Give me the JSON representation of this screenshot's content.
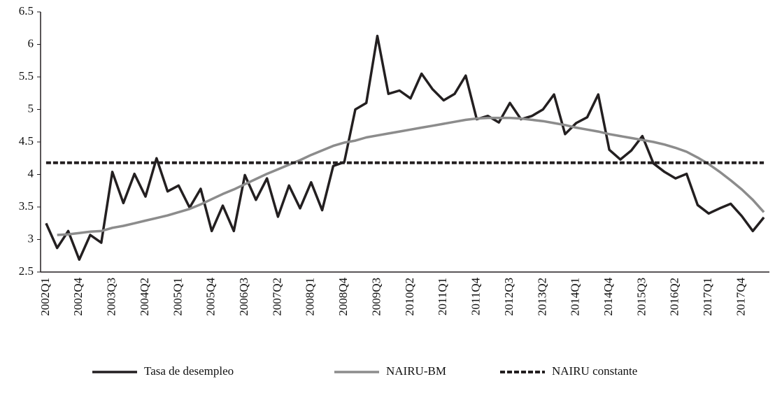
{
  "chart_data": {
    "type": "line",
    "categories": [
      "2002Q1",
      null,
      null,
      "2002Q4",
      null,
      null,
      "2003Q3",
      null,
      null,
      "2004Q2",
      null,
      null,
      "2005Q1",
      null,
      null,
      "2005Q4",
      null,
      null,
      "2006Q3",
      null,
      null,
      "2007Q2",
      null,
      null,
      "2008Q1",
      null,
      null,
      "2008Q4",
      null,
      null,
      "2009Q3",
      null,
      null,
      "2010Q2",
      null,
      null,
      "2011Q1",
      null,
      null,
      "2011Q4",
      null,
      null,
      "2012Q3",
      null,
      null,
      "2013Q2",
      null,
      null,
      "2014Q1",
      null,
      null,
      "2014Q4",
      null,
      null,
      "2015Q3",
      null,
      null,
      "2016Q2",
      null,
      null,
      "2017Q1",
      null,
      null,
      "2017Q4",
      null,
      null
    ],
    "series": [
      {
        "name": "Tasa de desempleo",
        "color": "#231f20",
        "dash": false,
        "values": [
          3.25,
          2.87,
          3.13,
          2.69,
          3.07,
          2.95,
          4.04,
          3.56,
          4.01,
          3.66,
          4.25,
          3.74,
          3.83,
          3.49,
          3.78,
          3.13,
          3.52,
          3.13,
          3.99,
          3.61,
          3.94,
          3.35,
          3.83,
          3.48,
          3.88,
          3.45,
          4.13,
          4.19,
          5.0,
          5.1,
          6.13,
          5.24,
          5.29,
          5.17,
          5.55,
          5.31,
          5.14,
          5.24,
          5.52,
          4.85,
          4.9,
          4.8,
          5.1,
          4.85,
          4.9,
          5.0,
          5.23,
          4.62,
          4.79,
          4.88,
          5.23,
          4.38,
          4.23,
          4.37,
          4.59,
          4.17,
          4.04,
          3.94,
          4.01,
          3.53,
          3.4,
          3.48,
          3.55,
          3.36,
          3.13,
          3.34
        ]
      },
      {
        "name": "NAIRU-BM",
        "color": "#8c8c8c",
        "dash": false,
        "values": [
          null,
          3.07,
          3.08,
          3.1,
          3.12,
          3.13,
          3.18,
          3.21,
          3.25,
          3.29,
          3.33,
          3.37,
          3.42,
          3.47,
          3.54,
          3.62,
          3.7,
          3.77,
          3.85,
          3.93,
          4.01,
          4.08,
          4.15,
          4.22,
          4.3,
          4.37,
          4.44,
          4.49,
          4.52,
          4.57,
          4.6,
          4.63,
          4.66,
          4.69,
          4.72,
          4.75,
          4.78,
          4.81,
          4.84,
          4.86,
          4.87,
          4.87,
          4.87,
          4.86,
          4.84,
          4.82,
          4.79,
          4.76,
          4.72,
          4.69,
          4.66,
          4.62,
          4.59,
          4.56,
          4.53,
          4.5,
          4.46,
          4.41,
          4.35,
          4.26,
          4.16,
          4.04,
          3.91,
          3.77,
          3.61,
          3.42
        ]
      },
      {
        "name": "NAIRU constante",
        "color": "#231f20",
        "dash": true,
        "values": [
          4.18,
          4.18,
          4.18,
          4.18,
          4.18,
          4.18,
          4.18,
          4.18,
          4.18,
          4.18,
          4.18,
          4.18,
          4.18,
          4.18,
          4.18,
          4.18,
          4.18,
          4.18,
          4.18,
          4.18,
          4.18,
          4.18,
          4.18,
          4.18,
          4.18,
          4.18,
          4.18,
          4.18,
          4.18,
          4.18,
          4.18,
          4.18,
          4.18,
          4.18,
          4.18,
          4.18,
          4.18,
          4.18,
          4.18,
          4.18,
          4.18,
          4.18,
          4.18,
          4.18,
          4.18,
          4.18,
          4.18,
          4.18,
          4.18,
          4.18,
          4.18,
          4.18,
          4.18,
          4.18,
          4.18,
          4.18,
          4.18,
          4.18,
          4.18,
          4.18,
          4.18,
          4.18,
          4.18,
          4.18,
          4.18,
          4.18
        ]
      }
    ],
    "ylim": [
      2.5,
      6.5
    ],
    "yticks": [
      2.5,
      3,
      3.5,
      4,
      4.5,
      5,
      5.5,
      6,
      6.5
    ],
    "grid": false
  }
}
